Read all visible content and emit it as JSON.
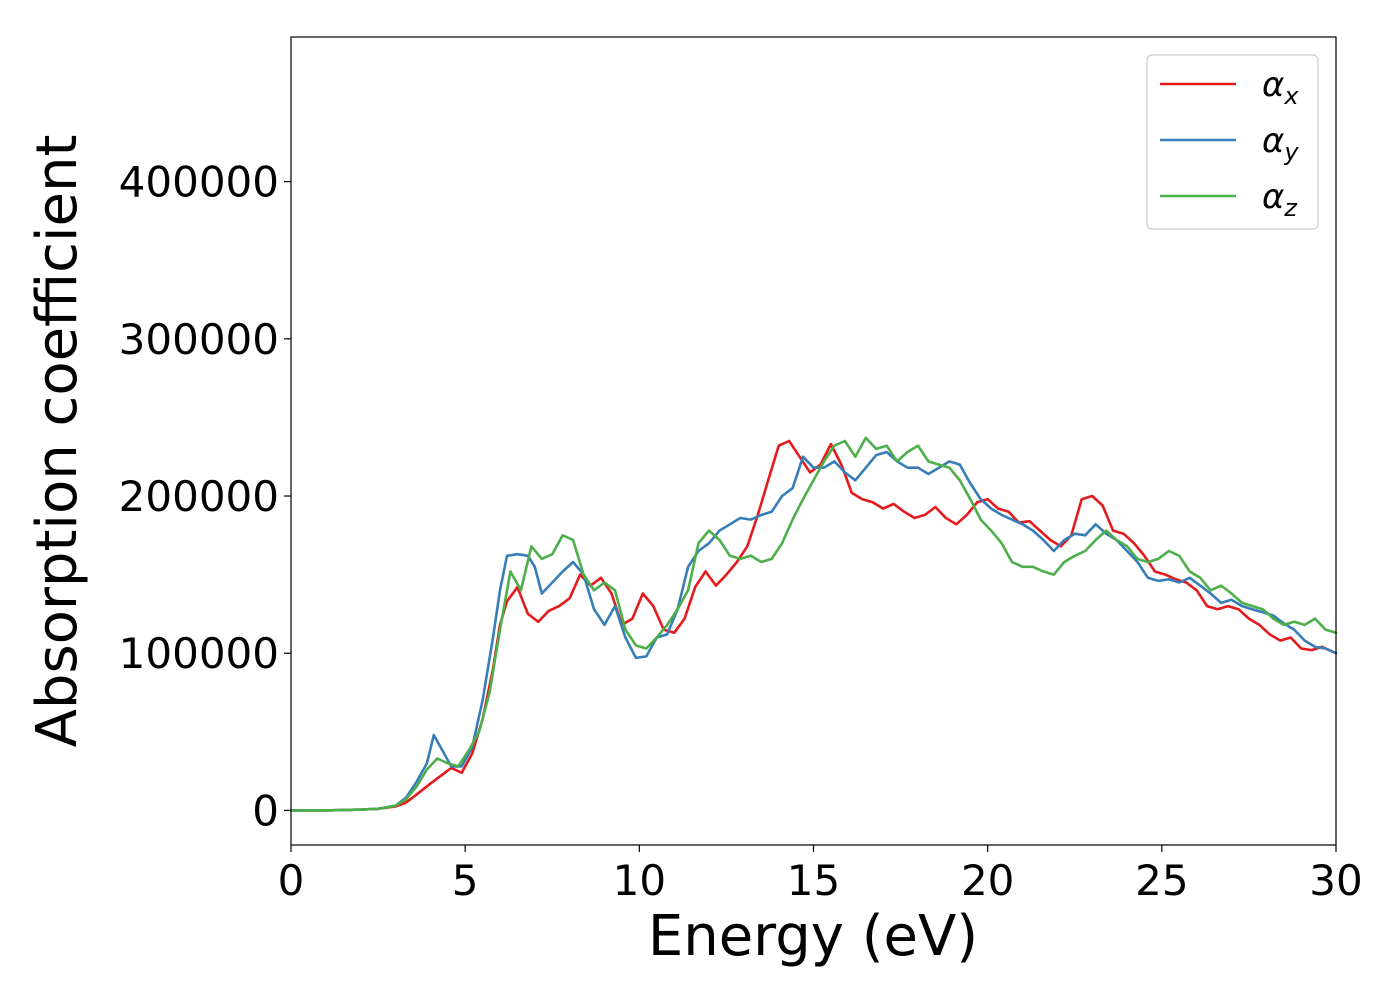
{
  "chart_data": {
    "type": "line",
    "xlabel": "Energy (eV)",
    "ylabel": "Absorption coefficient",
    "xlim": [
      0,
      30
    ],
    "ylim": [
      -22000,
      492000
    ],
    "xticks": [
      0,
      5,
      10,
      15,
      20,
      25,
      30
    ],
    "yticks": [
      0,
      100000,
      200000,
      300000,
      400000
    ],
    "grid": false,
    "legend_position": "top-right",
    "series": [
      {
        "name": "α_x",
        "symbol": "α",
        "subscript": "x",
        "color": "#e41a1c",
        "x": [
          0,
          1,
          2,
          2.5,
          3,
          3.3,
          3.6,
          4.0,
          4.3,
          4.6,
          4.9,
          5.2,
          5.5,
          5.8,
          6.0,
          6.2,
          6.5,
          6.8,
          7.1,
          7.4,
          7.7,
          8.0,
          8.3,
          8.6,
          8.9,
          9.2,
          9.5,
          9.8,
          10.1,
          10.4,
          10.7,
          11.0,
          11.3,
          11.6,
          11.9,
          12.2,
          12.5,
          12.8,
          13.1,
          13.4,
          13.7,
          14.0,
          14.3,
          14.6,
          14.9,
          15.2,
          15.5,
          15.8,
          16.1,
          16.4,
          16.7,
          17.0,
          17.3,
          17.6,
          17.9,
          18.2,
          18.5,
          18.8,
          19.1,
          19.4,
          19.7,
          20.0,
          20.3,
          20.6,
          20.9,
          21.2,
          21.5,
          21.8,
          22.1,
          22.4,
          22.7,
          23.0,
          23.3,
          23.6,
          23.9,
          24.2,
          24.5,
          24.8,
          25.1,
          25.4,
          25.7,
          26.0,
          26.3,
          26.6,
          26.9,
          27.2,
          27.5,
          27.8,
          28.1,
          28.4,
          28.7,
          29.0,
          29.3,
          29.6,
          30.0
        ],
        "y": [
          0,
          0,
          500,
          1000,
          2500,
          5000,
          10000,
          17000,
          22000,
          27000,
          24000,
          36000,
          58000,
          90000,
          118000,
          133000,
          142000,
          125000,
          120000,
          127000,
          130000,
          135000,
          150000,
          143000,
          148000,
          138000,
          118000,
          122000,
          138000,
          130000,
          115000,
          113000,
          122000,
          142000,
          152000,
          143000,
          150000,
          158000,
          168000,
          188000,
          210000,
          232000,
          235000,
          225000,
          215000,
          220000,
          233000,
          220000,
          202000,
          198000,
          196000,
          192000,
          195000,
          190000,
          186000,
          188000,
          193000,
          186000,
          182000,
          188000,
          196000,
          198000,
          192000,
          190000,
          183000,
          184000,
          178000,
          172000,
          168000,
          175000,
          198000,
          200000,
          194000,
          178000,
          176000,
          170000,
          162000,
          152000,
          150000,
          147000,
          145000,
          140000,
          130000,
          128000,
          130000,
          128000,
          122000,
          118000,
          112000,
          108000,
          110000,
          103000,
          102000,
          104000,
          100000
        ]
      },
      {
        "name": "α_y",
        "symbol": "α",
        "subscript": "y",
        "color": "#377eb8",
        "x": [
          0,
          1,
          2,
          2.5,
          3,
          3.3,
          3.6,
          3.9,
          4.1,
          4.3,
          4.6,
          4.9,
          5.2,
          5.5,
          5.8,
          6.0,
          6.2,
          6.5,
          6.8,
          7.0,
          7.2,
          7.5,
          7.8,
          8.1,
          8.4,
          8.7,
          9.0,
          9.3,
          9.6,
          9.9,
          10.2,
          10.5,
          10.8,
          11.1,
          11.4,
          11.7,
          12.0,
          12.3,
          12.6,
          12.9,
          13.2,
          13.5,
          13.8,
          14.1,
          14.4,
          14.7,
          15.0,
          15.3,
          15.6,
          15.9,
          16.2,
          16.5,
          16.8,
          17.1,
          17.4,
          17.7,
          18.0,
          18.3,
          18.6,
          18.9,
          19.2,
          19.5,
          19.8,
          20.1,
          20.4,
          20.7,
          21.0,
          21.3,
          21.6,
          21.9,
          22.2,
          22.5,
          22.8,
          23.1,
          23.4,
          23.7,
          24.0,
          24.3,
          24.6,
          24.9,
          25.2,
          25.5,
          25.8,
          26.1,
          26.4,
          26.7,
          27.0,
          27.3,
          27.6,
          27.9,
          28.2,
          28.5,
          28.8,
          29.1,
          29.4,
          29.7,
          30.0
        ],
        "y": [
          0,
          0,
          500,
          1000,
          3000,
          8000,
          18000,
          30000,
          48000,
          40000,
          28000,
          28000,
          40000,
          70000,
          110000,
          140000,
          162000,
          163000,
          162000,
          155000,
          138000,
          145000,
          152000,
          158000,
          150000,
          128000,
          118000,
          130000,
          110000,
          97000,
          98000,
          110000,
          112000,
          128000,
          155000,
          165000,
          170000,
          178000,
          182000,
          186000,
          185000,
          188000,
          190000,
          200000,
          205000,
          225000,
          218000,
          218000,
          222000,
          215000,
          210000,
          218000,
          226000,
          228000,
          222000,
          218000,
          218000,
          214000,
          218000,
          222000,
          220000,
          208000,
          198000,
          192000,
          188000,
          185000,
          182000,
          178000,
          172000,
          165000,
          172000,
          176000,
          175000,
          182000,
          176000,
          172000,
          165000,
          158000,
          148000,
          146000,
          147000,
          145000,
          148000,
          143000,
          138000,
          132000,
          134000,
          130000,
          128000,
          126000,
          124000,
          119000,
          115000,
          108000,
          104000,
          103000,
          100000
        ]
      },
      {
        "name": "α_z",
        "symbol": "α",
        "subscript": "z",
        "color": "#4daf4a",
        "x": [
          0,
          1,
          2,
          2.5,
          3,
          3.3,
          3.6,
          3.9,
          4.2,
          4.5,
          4.8,
          5.1,
          5.4,
          5.7,
          6.0,
          6.3,
          6.6,
          6.9,
          7.2,
          7.5,
          7.8,
          8.1,
          8.4,
          8.7,
          9.0,
          9.3,
          9.6,
          9.9,
          10.2,
          10.5,
          10.8,
          11.1,
          11.4,
          11.7,
          12.0,
          12.3,
          12.6,
          12.9,
          13.2,
          13.5,
          13.8,
          14.1,
          14.4,
          14.7,
          15.0,
          15.3,
          15.6,
          15.9,
          16.2,
          16.5,
          16.8,
          17.1,
          17.4,
          17.7,
          18.0,
          18.3,
          18.6,
          18.9,
          19.2,
          19.5,
          19.8,
          20.1,
          20.4,
          20.7,
          21.0,
          21.3,
          21.6,
          21.9,
          22.2,
          22.5,
          22.8,
          23.1,
          23.4,
          23.7,
          24.0,
          24.3,
          24.6,
          24.9,
          25.2,
          25.5,
          25.8,
          26.1,
          26.4,
          26.7,
          27.0,
          27.3,
          27.6,
          27.9,
          28.2,
          28.5,
          28.8,
          29.1,
          29.4,
          29.7,
          30.0
        ],
        "y": [
          0,
          0,
          500,
          1000,
          3000,
          7000,
          15000,
          26000,
          33000,
          30000,
          28000,
          38000,
          50000,
          75000,
          115000,
          152000,
          140000,
          168000,
          160000,
          163000,
          175000,
          172000,
          150000,
          140000,
          145000,
          140000,
          115000,
          105000,
          103000,
          110000,
          118000,
          128000,
          140000,
          170000,
          178000,
          172000,
          162000,
          160000,
          162000,
          158000,
          160000,
          170000,
          185000,
          198000,
          210000,
          222000,
          232000,
          235000,
          225000,
          237000,
          230000,
          232000,
          222000,
          228000,
          232000,
          222000,
          220000,
          218000,
          210000,
          198000,
          185000,
          178000,
          170000,
          158000,
          155000,
          155000,
          152000,
          150000,
          158000,
          162000,
          165000,
          172000,
          178000,
          172000,
          168000,
          160000,
          158000,
          160000,
          165000,
          162000,
          152000,
          148000,
          140000,
          143000,
          138000,
          132000,
          130000,
          128000,
          122000,
          118000,
          120000,
          118000,
          122000,
          115000,
          113000
        ]
      }
    ]
  }
}
